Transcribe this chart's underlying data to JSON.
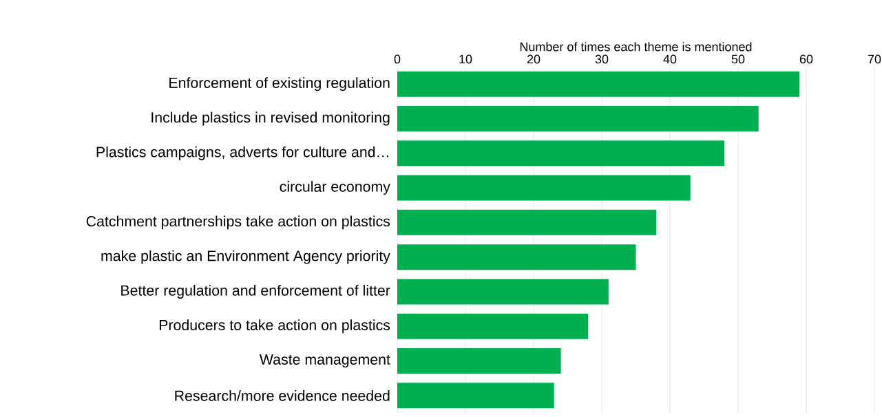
{
  "chart_data": {
    "type": "bar",
    "orientation": "horizontal",
    "xlabel": "Number of times each theme is mentioned",
    "categories": [
      "Enforcement of existing regulation",
      "Include plastics in revised monitoring",
      "Plastics campaigns, adverts for culture and…",
      "circular economy",
      "Catchment partnerships take action on plastics",
      "make plastic an Environment Agency priority",
      "Better regulation and enforcement of litter",
      "Producers to take action on plastics",
      "Waste management",
      "Research/more evidence needed"
    ],
    "values": [
      59,
      53,
      48,
      43,
      38,
      35,
      31,
      28,
      24,
      23
    ],
    "color": "#00b050",
    "xlim": [
      0,
      70
    ],
    "xticks": [
      0,
      10,
      20,
      30,
      40,
      50,
      60,
      70
    ],
    "grid": "x"
  }
}
